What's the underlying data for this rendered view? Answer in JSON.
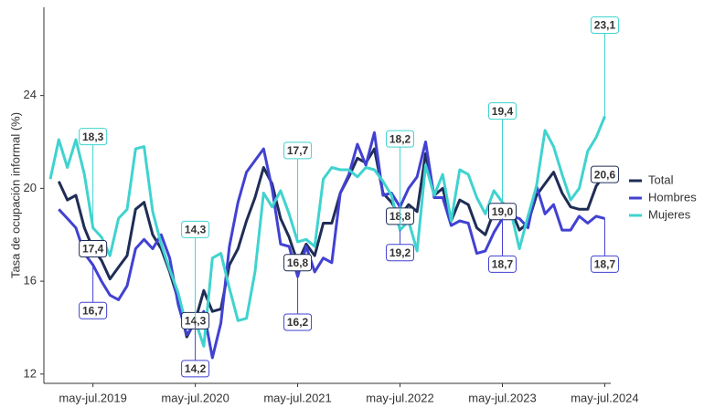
{
  "chart_data": {
    "type": "line",
    "y_label": "Tasa de ocupación informal (%)",
    "categories": [
      null,
      null,
      null,
      null,
      null,
      "may-jul.2019",
      null,
      null,
      null,
      null,
      null,
      null,
      null,
      null,
      null,
      null,
      null,
      "may-jul.2020",
      null,
      null,
      null,
      null,
      null,
      null,
      null,
      null,
      null,
      null,
      null,
      "may-jul.2021",
      null,
      null,
      null,
      null,
      null,
      null,
      null,
      null,
      null,
      null,
      null,
      "may-jul.2022",
      null,
      null,
      null,
      null,
      null,
      null,
      null,
      null,
      null,
      null,
      null,
      "may-jul.2023",
      null,
      null,
      null,
      null,
      null,
      null,
      null,
      null,
      null,
      null,
      null,
      "may-jul.2024"
    ],
    "ylim": [
      11.6,
      27.8
    ],
    "yticks": [
      12,
      16,
      20,
      24
    ],
    "grid": false,
    "legend": "right",
    "series": [
      {
        "name": "Total",
        "color": "#1f2d56",
        "values": [
          null,
          20.3,
          19.5,
          19.7,
          18.3,
          17.4,
          16.9,
          16.1,
          16.6,
          17.1,
          19.1,
          19.4,
          18.0,
          17.4,
          16.4,
          15.2,
          13.6,
          14.3,
          15.6,
          14.7,
          14.8,
          16.7,
          17.4,
          18.6,
          19.6,
          20.9,
          20.2,
          18.7,
          17.9,
          16.8,
          17.6,
          17.1,
          18.5,
          18.5,
          19.8,
          20.5,
          21.3,
          21.1,
          21.7,
          19.8,
          19.4,
          18.8,
          19.3,
          19.0,
          21.5,
          19.7,
          20.0,
          18.6,
          19.5,
          19.3,
          18.3,
          18.0,
          19.0,
          19.0,
          19.1,
          18.2,
          18.5,
          19.7,
          20.2,
          20.7,
          19.8,
          19.2,
          19.1,
          19.1,
          20.1,
          20.6
        ],
        "value_labels": [
          null,
          null,
          null,
          null,
          null,
          "17,4",
          null,
          null,
          null,
          null,
          null,
          null,
          null,
          null,
          null,
          null,
          null,
          "14,3",
          null,
          null,
          null,
          null,
          null,
          null,
          null,
          null,
          null,
          null,
          null,
          "16,8",
          null,
          null,
          null,
          null,
          null,
          null,
          null,
          null,
          null,
          null,
          null,
          "18,8",
          null,
          null,
          null,
          null,
          null,
          null,
          null,
          null,
          null,
          null,
          null,
          "19,0",
          null,
          null,
          null,
          null,
          null,
          null,
          null,
          null,
          null,
          null,
          null,
          "20,6"
        ]
      },
      {
        "name": "Hombres",
        "color": "#4141d2",
        "values": [
          null,
          19.1,
          18.7,
          18.3,
          17.2,
          16.7,
          16.0,
          15.4,
          15.2,
          15.8,
          17.4,
          17.8,
          17.4,
          18.0,
          17.0,
          15.0,
          13.7,
          14.2,
          14.7,
          12.7,
          14.2,
          17.5,
          19.4,
          20.7,
          21.2,
          21.7,
          20.0,
          17.6,
          17.5,
          16.2,
          17.5,
          16.4,
          17.0,
          16.8,
          19.8,
          20.6,
          21.9,
          21.0,
          22.4,
          19.7,
          19.8,
          19.2,
          20.0,
          20.5,
          22.0,
          19.6,
          19.6,
          18.4,
          18.6,
          18.5,
          17.2,
          17.3,
          18.1,
          18.7,
          18.8,
          18.7,
          18.3,
          20.1,
          18.9,
          19.3,
          18.2,
          18.2,
          18.8,
          18.5,
          18.8,
          18.7
        ],
        "value_labels": [
          null,
          null,
          null,
          null,
          null,
          "16,7",
          null,
          null,
          null,
          null,
          null,
          null,
          null,
          null,
          null,
          null,
          null,
          "14,2",
          null,
          null,
          null,
          null,
          null,
          null,
          null,
          null,
          null,
          null,
          null,
          "16,2",
          null,
          null,
          null,
          null,
          null,
          null,
          null,
          null,
          null,
          null,
          null,
          "19,2",
          null,
          null,
          null,
          null,
          null,
          null,
          null,
          null,
          null,
          null,
          null,
          "18,7",
          null,
          null,
          null,
          null,
          null,
          null,
          null,
          null,
          null,
          null,
          null,
          "18,7"
        ]
      },
      {
        "name": "Mujeres",
        "color": "#3fd3cf",
        "values": [
          20.4,
          22.1,
          20.9,
          22.1,
          20.6,
          18.3,
          17.9,
          17.1,
          18.7,
          19.1,
          21.7,
          21.8,
          19.0,
          17.6,
          16.5,
          15.5,
          14.0,
          14.3,
          13.2,
          17.0,
          17.2,
          15.7,
          14.3,
          14.4,
          16.4,
          19.8,
          19.2,
          19.9,
          18.9,
          17.7,
          17.8,
          17.5,
          20.4,
          20.9,
          20.8,
          20.8,
          20.5,
          20.9,
          20.8,
          20.3,
          19.7,
          18.2,
          18.6,
          17.3,
          21.0,
          19.7,
          20.6,
          18.6,
          20.8,
          20.6,
          19.6,
          18.9,
          19.9,
          19.4,
          19.0,
          17.4,
          18.8,
          20.1,
          22.5,
          21.8,
          20.6,
          19.5,
          20.0,
          21.6,
          22.2,
          23.1
        ],
        "value_labels": [
          null,
          null,
          null,
          null,
          null,
          "18,3",
          null,
          null,
          null,
          null,
          null,
          null,
          null,
          null,
          null,
          null,
          null,
          "14,3",
          null,
          null,
          null,
          null,
          null,
          null,
          null,
          null,
          null,
          null,
          null,
          "17,7",
          null,
          null,
          null,
          null,
          null,
          null,
          null,
          null,
          null,
          null,
          null,
          "18,2",
          null,
          null,
          null,
          null,
          null,
          null,
          null,
          null,
          null,
          null,
          null,
          "19,4",
          null,
          null,
          null,
          null,
          null,
          null,
          null,
          null,
          null,
          null,
          null,
          "23,1"
        ]
      }
    ]
  }
}
